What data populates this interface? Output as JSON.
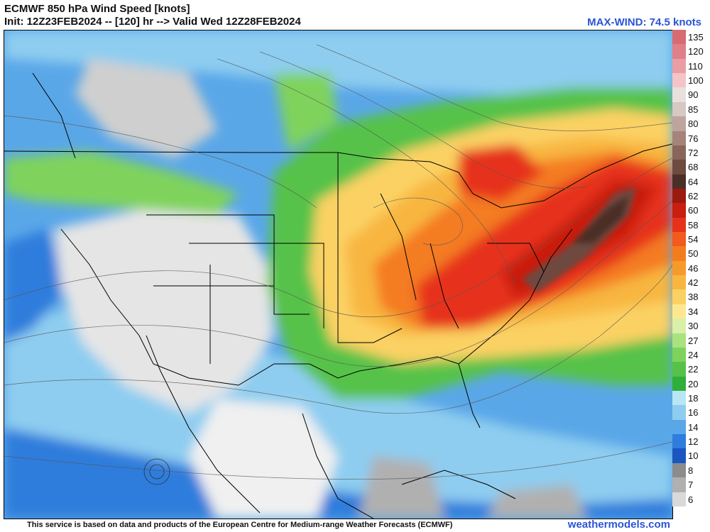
{
  "header": {
    "title_line1": "ECMWF 850 hPa Wind Speed [knots]",
    "title_line2": "Init: 12Z23FEB2024 -- [120] hr --> Valid Wed 12Z28FEB2024",
    "max_wind": "MAX-WIND: 74.5 knots"
  },
  "colorbar": [
    {
      "label": "135",
      "color": "#d96a72"
    },
    {
      "label": "120",
      "color": "#e08088"
    },
    {
      "label": "110",
      "color": "#ea9ea3"
    },
    {
      "label": "100",
      "color": "#f5c4c6"
    },
    {
      "label": "90",
      "color": "#e8e0dd"
    },
    {
      "label": "85",
      "color": "#d6c8c3"
    },
    {
      "label": "80",
      "color": "#bda59d"
    },
    {
      "label": "76",
      "color": "#a68479"
    },
    {
      "label": "72",
      "color": "#8a665a"
    },
    {
      "label": "68",
      "color": "#6e4a3f"
    },
    {
      "label": "64",
      "color": "#4b2e27"
    },
    {
      "label": "62",
      "color": "#9b1a10"
    },
    {
      "label": "60",
      "color": "#c81f10"
    },
    {
      "label": "58",
      "color": "#e6321a"
    },
    {
      "label": "54",
      "color": "#f25a1e"
    },
    {
      "label": "50",
      "color": "#f47c20"
    },
    {
      "label": "46",
      "color": "#f79a2c"
    },
    {
      "label": "42",
      "color": "#f8b640"
    },
    {
      "label": "38",
      "color": "#fbd163"
    },
    {
      "label": "34",
      "color": "#fde890"
    },
    {
      "label": "30",
      "color": "#d8f0a8"
    },
    {
      "label": "27",
      "color": "#a9e27e"
    },
    {
      "label": "24",
      "color": "#7fd35c"
    },
    {
      "label": "22",
      "color": "#56c24a"
    },
    {
      "label": "20",
      "color": "#2fae3c"
    },
    {
      "label": "18",
      "color": "#b8e6f5"
    },
    {
      "label": "16",
      "color": "#8ecdf0"
    },
    {
      "label": "14",
      "color": "#5aa7e8"
    },
    {
      "label": "12",
      "color": "#2f7ddc"
    },
    {
      "label": "10",
      "color": "#1a56c0"
    },
    {
      "label": "8",
      "color": "#8c8c8c"
    },
    {
      "label": "7",
      "color": "#b0b0b0"
    },
    {
      "label": "6",
      "color": "#d9d9d9"
    }
  ],
  "footer": {
    "credit": "This service is based on data and products of the European Centre for Medium-range Weather Forecasts (ECMWF)",
    "site": "weathermodels.com"
  }
}
